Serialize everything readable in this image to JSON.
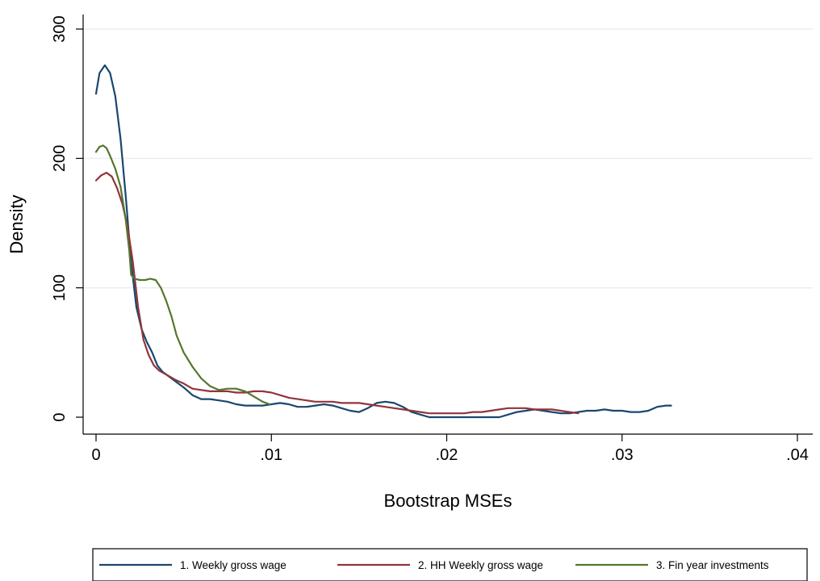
{
  "chart_data": {
    "type": "line",
    "title": "",
    "xlabel": "Bootstrap MSEs",
    "ylabel": "Density",
    "xlim": [
      0,
      0.04
    ],
    "ylim": [
      0,
      300
    ],
    "x_ticks": [
      0,
      0.01,
      0.02,
      0.03,
      0.04
    ],
    "x_tick_labels": [
      "0",
      ".01",
      ".02",
      ".03",
      ".04"
    ],
    "y_ticks": [
      0,
      100,
      200,
      300
    ],
    "y_tick_labels": [
      "0",
      "100",
      "200",
      "300"
    ],
    "grid": true,
    "legend_position": "bottom",
    "series": [
      {
        "name": "1. Weekly gross wage",
        "color": "#1a476f",
        "points": [
          [
            0,
            250
          ],
          [
            0.0002,
            266
          ],
          [
            0.0005,
            272
          ],
          [
            0.0008,
            266
          ],
          [
            0.0011,
            248
          ],
          [
            0.0014,
            215
          ],
          [
            0.0017,
            170
          ],
          [
            0.002,
            120
          ],
          [
            0.0023,
            85
          ],
          [
            0.0026,
            68
          ],
          [
            0.0029,
            58
          ],
          [
            0.0032,
            50
          ],
          [
            0.0035,
            40
          ],
          [
            0.0038,
            35
          ],
          [
            0.0042,
            31
          ],
          [
            0.0046,
            27
          ],
          [
            0.005,
            23
          ],
          [
            0.0055,
            17
          ],
          [
            0.006,
            14
          ],
          [
            0.0065,
            14
          ],
          [
            0.007,
            13
          ],
          [
            0.0075,
            12
          ],
          [
            0.008,
            10
          ],
          [
            0.0085,
            9
          ],
          [
            0.009,
            9
          ],
          [
            0.0095,
            9
          ],
          [
            0.01,
            10
          ],
          [
            0.0105,
            11
          ],
          [
            0.011,
            10
          ],
          [
            0.0115,
            8
          ],
          [
            0.012,
            8
          ],
          [
            0.0125,
            9
          ],
          [
            0.013,
            10
          ],
          [
            0.0135,
            9
          ],
          [
            0.014,
            7
          ],
          [
            0.0145,
            5
          ],
          [
            0.015,
            4
          ],
          [
            0.0155,
            7
          ],
          [
            0.016,
            11
          ],
          [
            0.0165,
            12
          ],
          [
            0.017,
            11
          ],
          [
            0.0175,
            8
          ],
          [
            0.018,
            4
          ],
          [
            0.0185,
            2
          ],
          [
            0.019,
            0
          ],
          [
            0.0195,
            0
          ],
          [
            0.02,
            0
          ],
          [
            0.021,
            0
          ],
          [
            0.022,
            0
          ],
          [
            0.023,
            0
          ],
          [
            0.0235,
            2
          ],
          [
            0.024,
            4
          ],
          [
            0.0245,
            5
          ],
          [
            0.025,
            6
          ],
          [
            0.0255,
            5
          ],
          [
            0.026,
            4
          ],
          [
            0.0265,
            3
          ],
          [
            0.027,
            3
          ],
          [
            0.0275,
            4
          ],
          [
            0.028,
            5
          ],
          [
            0.0285,
            5
          ],
          [
            0.029,
            6
          ],
          [
            0.0295,
            5
          ],
          [
            0.03,
            5
          ],
          [
            0.0305,
            4
          ],
          [
            0.031,
            4
          ],
          [
            0.0315,
            5
          ],
          [
            0.032,
            8
          ],
          [
            0.0325,
            9
          ],
          [
            0.0328,
            9
          ]
        ]
      },
      {
        "name": "2. HH Weekly gross wage",
        "color": "#90353b",
        "points": [
          [
            0,
            183
          ],
          [
            0.0003,
            187
          ],
          [
            0.0006,
            189
          ],
          [
            0.0009,
            186
          ],
          [
            0.0012,
            177
          ],
          [
            0.0015,
            165
          ],
          [
            0.0018,
            147
          ],
          [
            0.0021,
            120
          ],
          [
            0.0024,
            85
          ],
          [
            0.0027,
            60
          ],
          [
            0.003,
            48
          ],
          [
            0.0033,
            40
          ],
          [
            0.0036,
            36
          ],
          [
            0.004,
            33
          ],
          [
            0.0045,
            29
          ],
          [
            0.005,
            26
          ],
          [
            0.0055,
            22
          ],
          [
            0.006,
            21
          ],
          [
            0.0065,
            20
          ],
          [
            0.007,
            20
          ],
          [
            0.0075,
            20
          ],
          [
            0.008,
            19
          ],
          [
            0.0085,
            19
          ],
          [
            0.009,
            20
          ],
          [
            0.0095,
            20
          ],
          [
            0.01,
            19
          ],
          [
            0.0105,
            17
          ],
          [
            0.011,
            15
          ],
          [
            0.0115,
            14
          ],
          [
            0.012,
            13
          ],
          [
            0.0125,
            12
          ],
          [
            0.013,
            12
          ],
          [
            0.0135,
            12
          ],
          [
            0.014,
            11
          ],
          [
            0.0145,
            11
          ],
          [
            0.015,
            11
          ],
          [
            0.0155,
            10
          ],
          [
            0.016,
            9
          ],
          [
            0.0165,
            8
          ],
          [
            0.017,
            7
          ],
          [
            0.0175,
            6
          ],
          [
            0.018,
            5
          ],
          [
            0.0185,
            4
          ],
          [
            0.019,
            3
          ],
          [
            0.0195,
            3
          ],
          [
            0.02,
            3
          ],
          [
            0.0205,
            3
          ],
          [
            0.021,
            3
          ],
          [
            0.0215,
            4
          ],
          [
            0.022,
            4
          ],
          [
            0.0225,
            5
          ],
          [
            0.023,
            6
          ],
          [
            0.0235,
            7
          ],
          [
            0.024,
            7
          ],
          [
            0.0245,
            7
          ],
          [
            0.025,
            6
          ],
          [
            0.0255,
            6
          ],
          [
            0.026,
            6
          ],
          [
            0.0265,
            5
          ],
          [
            0.027,
            4
          ],
          [
            0.0275,
            3
          ]
        ]
      },
      {
        "name": "3. Fin year investments",
        "color": "#55752f",
        "points": [
          [
            0,
            205
          ],
          [
            0.0002,
            209
          ],
          [
            0.0004,
            210
          ],
          [
            0.0006,
            208
          ],
          [
            0.0008,
            202
          ],
          [
            0.0011,
            192
          ],
          [
            0.0014,
            178
          ],
          [
            0.0017,
            152
          ],
          [
            0.0019,
            128
          ],
          [
            0.002,
            110
          ],
          [
            0.0022,
            107
          ],
          [
            0.0025,
            106
          ],
          [
            0.0028,
            106
          ],
          [
            0.0031,
            107
          ],
          [
            0.0034,
            106
          ],
          [
            0.0037,
            100
          ],
          [
            0.004,
            90
          ],
          [
            0.0043,
            78
          ],
          [
            0.0046,
            63
          ],
          [
            0.005,
            50
          ],
          [
            0.0055,
            39
          ],
          [
            0.006,
            30
          ],
          [
            0.0065,
            24
          ],
          [
            0.007,
            21
          ],
          [
            0.0075,
            22
          ],
          [
            0.008,
            22
          ],
          [
            0.0085,
            20
          ],
          [
            0.009,
            16
          ],
          [
            0.0095,
            12
          ],
          [
            0.0099,
            10
          ]
        ]
      }
    ]
  }
}
